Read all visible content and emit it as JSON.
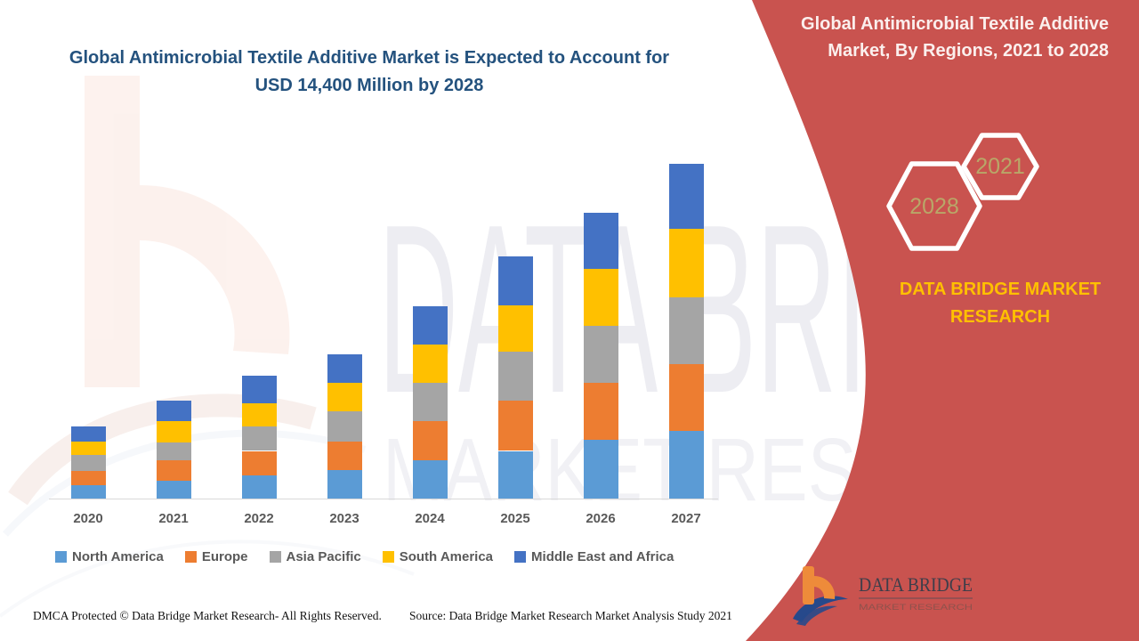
{
  "header": {
    "left_title": "Global Antimicrobial Textile Additive Market is Expected to Account for USD 14,400 Million by 2028",
    "right_title": "Global Antimicrobial Textile Additive Market, By Regions, 2021 to 2028"
  },
  "side_panel": {
    "panel_color": "#C9534F",
    "hexagons": [
      {
        "label": "2028"
      },
      {
        "label": "2021"
      }
    ],
    "brand_caption": "DATA BRIDGE MARKET RESEARCH",
    "caption_color": "#FFC000",
    "hexagon_text_color": "#B9A768"
  },
  "logo": {
    "line1": "DATA BRIDGE",
    "line2": "MARKET RESEARCH"
  },
  "watermark": {
    "line1": "DATA BRIDGE",
    "line2": "MARKET RESEARCH"
  },
  "footer": {
    "left": "DMCA Protected © Data Bridge Market Research- All Rights Reserved.",
    "right": "Source: Data Bridge Market Research Market Analysis Study 2021"
  },
  "chart_data": {
    "type": "bar",
    "stacked": true,
    "categories": [
      "2020",
      "2021",
      "2022",
      "2023",
      "2024",
      "2025",
      "2026",
      "2027"
    ],
    "series": [
      {
        "name": "North America",
        "color": "#5B9BD5",
        "values": [
          500,
          650,
          850,
          1050,
          1400,
          1750,
          2150,
          2500
        ]
      },
      {
        "name": "Europe",
        "color": "#ED7D31",
        "values": [
          500,
          750,
          900,
          1050,
          1450,
          1850,
          2100,
          2450
        ]
      },
      {
        "name": "Asia Pacific",
        "color": "#A5A5A5",
        "values": [
          600,
          650,
          900,
          1100,
          1400,
          1800,
          2100,
          2450
        ]
      },
      {
        "name": "South America",
        "color": "#FFC000",
        "values": [
          500,
          800,
          850,
          1050,
          1400,
          1700,
          2100,
          2500
        ]
      },
      {
        "name": "Middle East and Africa",
        "color": "#4472C4",
        "values": [
          550,
          750,
          1000,
          1050,
          1400,
          1800,
          2050,
          2400
        ]
      }
    ],
    "totals": [
      2650,
      3600,
      4500,
      5300,
      7050,
      8900,
      10500,
      12300
    ],
    "value_units": "USD Million (estimated from bar heights; y-axis not labeled in figure)",
    "xlabel": "",
    "ylabel": "",
    "ylim": [
      0,
      13000
    ],
    "grid": false,
    "legend_position": "bottom"
  }
}
